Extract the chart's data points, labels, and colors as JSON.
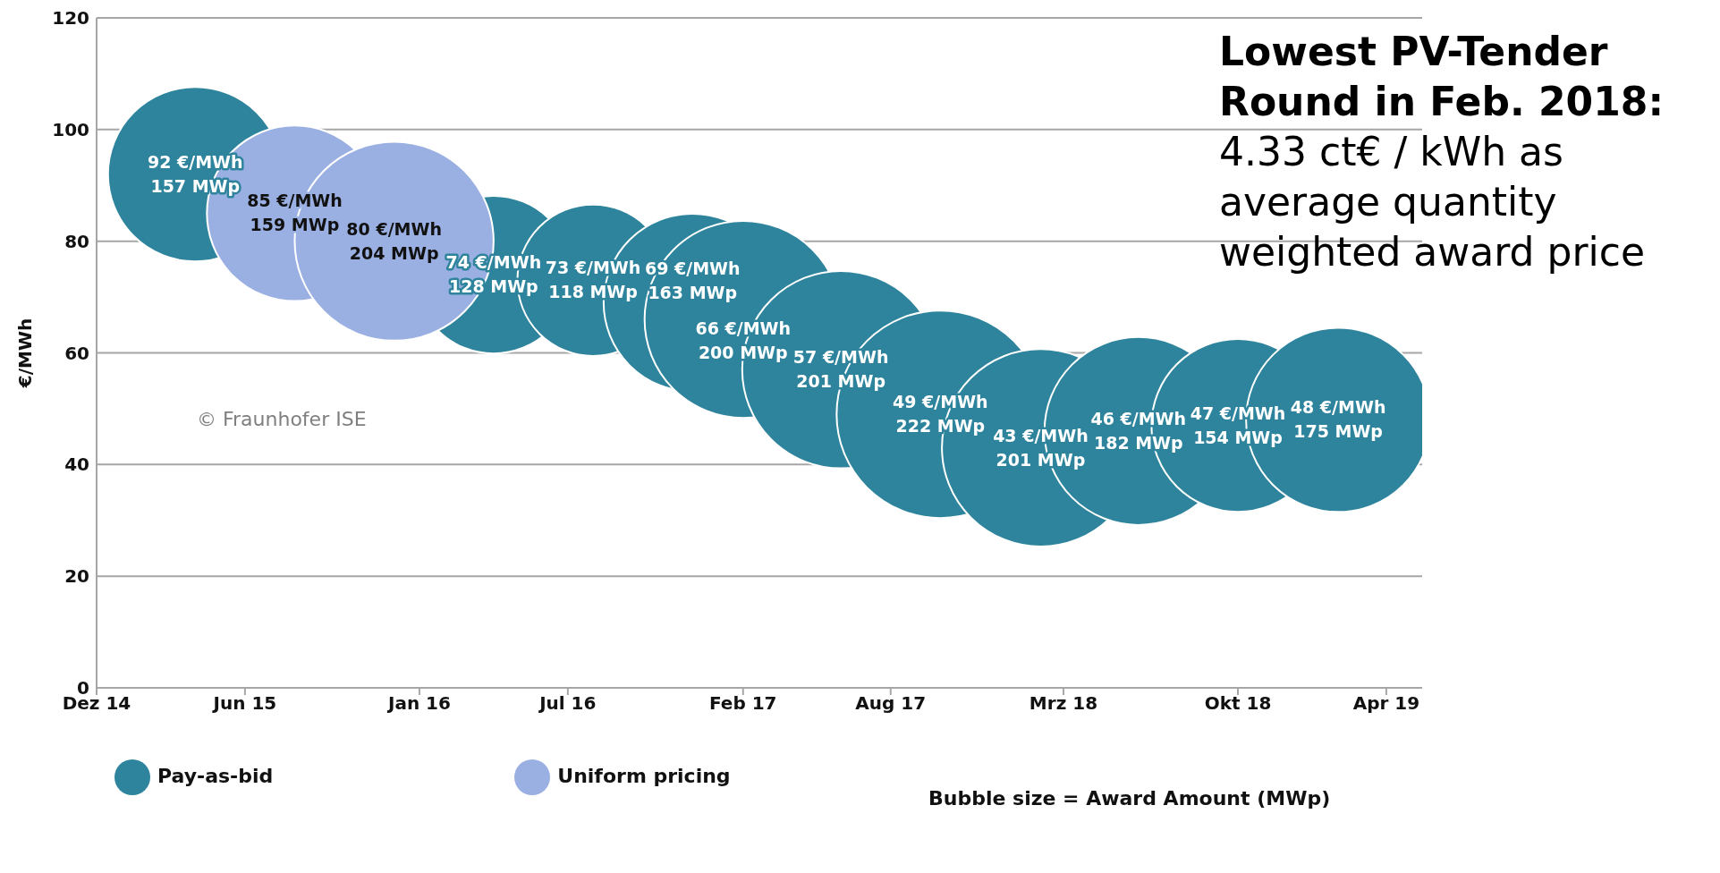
{
  "chart_data": {
    "type": "bubble",
    "title": "Lowest PV-Tender Round in Feb. 2018:",
    "subtitle": "4.33 ct€ / kWh as average quantity weighted award price",
    "ylabel": "€/MWh",
    "xlim": [
      "2014-12-01",
      "2019-05-15"
    ],
    "xticks": [
      {
        "value": "2014-12-01",
        "label": "Dez 14"
      },
      {
        "value": "2015-06-01",
        "label": "Jun 15"
      },
      {
        "value": "2016-01-01",
        "label": "Jan 16"
      },
      {
        "value": "2016-07-01",
        "label": "Jul 16"
      },
      {
        "value": "2017-02-01",
        "label": "Feb 17"
      },
      {
        "value": "2017-08-01",
        "label": "Aug 17"
      },
      {
        "value": "2018-03-01",
        "label": "Mrz 18"
      },
      {
        "value": "2018-10-01",
        "label": "Okt 18"
      },
      {
        "value": "2019-04-01",
        "label": "Apr 19"
      }
    ],
    "ylim": [
      0,
      120
    ],
    "yticks": [
      0,
      20,
      40,
      60,
      80,
      100,
      120
    ],
    "grid": "y",
    "legend": "bottom",
    "marker": "circle",
    "annotations": [
      "Bubble size = Award Amount (MWp)",
      "© Fraunhofer ISE"
    ],
    "series": [
      {
        "name": "Pay-as-bid",
        "color": "#2e849c",
        "x": [
          "2015-04",
          "2016-04",
          "2016-08",
          "2016-12",
          "2017-02",
          "2017-06",
          "2017-10",
          "2018-02",
          "2018-06",
          "2018-10",
          "2019-02"
        ],
        "values": [
          92,
          74,
          73,
          69,
          66,
          57,
          49,
          43,
          46,
          47,
          48
        ],
        "sizes": [
          0.707,
          0.577,
          0.532,
          0.734,
          0.901,
          0.905,
          1,
          0.905,
          0.82,
          0.694,
          0.788
        ],
        "value_labels": [
          "92 €/MWh\n157 MWp",
          "74 €/MWh\n128 MWp",
          "73 €/MWh\n118 MWp",
          "69 €/MWh\n163 MWp",
          "66 €/MWh\n200 MWp",
          "57 €/MWh\n201 MWp",
          "49 €/MWh\n222 MWp",
          "43 €/MWh\n201 MWp",
          "46 €/MWh\n182 MWp",
          "47 €/MWh\n154 MWp",
          "48 €/MWh\n175 MWp"
        ]
      },
      {
        "name": "Uniform pricing",
        "color": "#9bb0e2",
        "x": [
          "2015-08",
          "2015-12"
        ],
        "values": [
          85,
          80
        ],
        "sizes": [
          0.716,
          0.919
        ],
        "value_labels": [
          "85 €/MWh\n159 MWp",
          "80 €/MWh\n204 MWp"
        ]
      }
    ]
  }
}
